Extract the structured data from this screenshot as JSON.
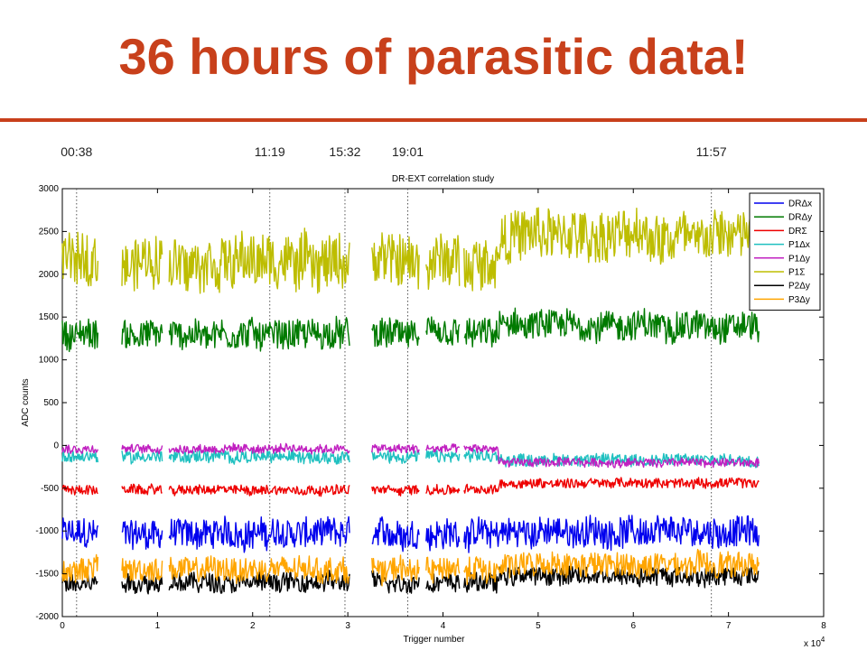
{
  "slide": {
    "title": "36 hours of parasitic data!"
  },
  "time_markers": [
    {
      "label": "00:38",
      "x": 0.15
    },
    {
      "label": "11:19",
      "x": 2.18
    },
    {
      "label": "15:32",
      "x": 2.97
    },
    {
      "label": "19:01",
      "x": 3.63
    },
    {
      "label": "11:57",
      "x": 6.82
    }
  ],
  "chart_data": {
    "type": "line",
    "title": "DR-EXT correlation study",
    "xlabel": "Trigger number",
    "ylabel": "ADC counts",
    "x_multiplier_label": "x 10",
    "x_multiplier_exp": "4",
    "xlim": [
      0,
      8
    ],
    "ylim": [
      -2000,
      3000
    ],
    "xticks": [
      0,
      1,
      2,
      3,
      4,
      5,
      6,
      7,
      8
    ],
    "yticks": [
      -2000,
      -1500,
      -1000,
      -500,
      0,
      500,
      1000,
      1500,
      2000,
      2500,
      3000
    ],
    "grid": false,
    "legend_position": "top-right",
    "gaps": [
      [
        0.38,
        0.62
      ],
      [
        1.05,
        1.12
      ],
      [
        3.02,
        3.25
      ],
      [
        3.75,
        3.82
      ],
      [
        4.18,
        4.22
      ]
    ],
    "series": [
      {
        "name": "DRΔx",
        "color": "#0000ee",
        "level_before": -1030,
        "level_after": -1010,
        "spread": 170
      },
      {
        "name": "DRΔy",
        "color": "#007a00",
        "level_before": 1300,
        "level_after": 1400,
        "spread": 170
      },
      {
        "name": "DRΣ",
        "color": "#ee0000",
        "level_before": -520,
        "level_after": -440,
        "spread": 55
      },
      {
        "name": "P1Δx",
        "color": "#1fc0c0",
        "level_before": -130,
        "level_after": -170,
        "spread": 70
      },
      {
        "name": "P1Δy",
        "color": "#c020c0",
        "level_before": -40,
        "level_after": -200,
        "spread": 50
      },
      {
        "name": "P1Σ",
        "color": "#bdbd00",
        "level_before": 2150,
        "level_after": 2450,
        "spread": 300
      },
      {
        "name": "P2Δy",
        "color": "#000000",
        "level_before": -1600,
        "level_after": -1520,
        "spread": 110
      },
      {
        "name": "P3Δy",
        "color": "#ffa500",
        "level_before": -1450,
        "level_after": -1400,
        "spread": 140
      }
    ]
  }
}
